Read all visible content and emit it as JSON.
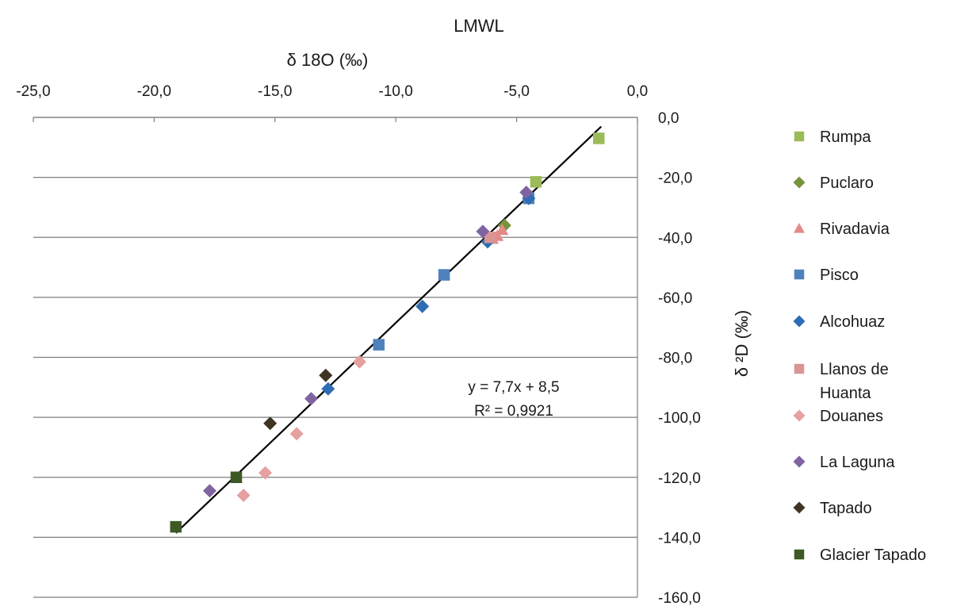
{
  "chart_data": {
    "type": "scatter",
    "title": "LMWL",
    "xlabel": "δ 18O (‰)",
    "ylabel": "δ ²D (‰)",
    "xlim": [
      -25,
      0
    ],
    "ylim": [
      -160,
      0
    ],
    "x_ticks": [
      "-25,0",
      "-20,0",
      "-15,0",
      "-10,0",
      "-5,0",
      "0,0"
    ],
    "y_ticks": [
      "0,0",
      "-20,0",
      "-40,0",
      "-60,0",
      "-80,0",
      "-100,0",
      "-120,0",
      "-140,0",
      "-160,0"
    ],
    "x_axis_position": "top",
    "y_axis_position": "right",
    "grid": "horizontal",
    "legend_position": "right",
    "trendline": {
      "equation": "y = 7,7x + 8,5",
      "r2": "R² = 0,9921",
      "slope": 7.7,
      "intercept": 8.5,
      "x_range": [
        -19.1,
        -1.5
      ]
    },
    "series": [
      {
        "name": "Rumpa",
        "marker": "square",
        "color": "#9bbb59",
        "points": [
          [
            -1.6,
            -7
          ],
          [
            -4.2,
            -21.5
          ]
        ]
      },
      {
        "name": "Puclaro",
        "marker": "diamond",
        "color": "#77933c",
        "points": [
          [
            -5.5,
            -36
          ]
        ]
      },
      {
        "name": "Rivadavia",
        "marker": "triangle",
        "color": "#e48a87",
        "points": [
          [
            -5.6,
            -37.5
          ],
          [
            -5.8,
            -39.5
          ],
          [
            -6.0,
            -40.5
          ]
        ]
      },
      {
        "name": "Pisco",
        "marker": "square",
        "color": "#4f81bd",
        "points": [
          [
            -4.5,
            -27
          ],
          [
            -8.0,
            -52.5
          ],
          [
            -10.7,
            -75.8
          ]
        ]
      },
      {
        "name": "Alcohuaz",
        "marker": "diamond",
        "color": "#2e6db4",
        "points": [
          [
            -4.5,
            -27
          ],
          [
            -6.2,
            -41.5
          ],
          [
            -8.9,
            -63
          ],
          [
            -12.8,
            -90.5
          ]
        ]
      },
      {
        "name": "Llanos de Huanta",
        "marker": "square",
        "color": "#d99594",
        "points": [
          [
            -6.1,
            -40
          ]
        ]
      },
      {
        "name": "Douanes",
        "marker": "diamond",
        "color": "#e6a0a0",
        "points": [
          [
            -11.5,
            -81.5
          ],
          [
            -14.1,
            -105.5
          ],
          [
            -15.4,
            -118.5
          ],
          [
            -16.3,
            -126
          ]
        ]
      },
      {
        "name": "La Laguna",
        "marker": "diamond",
        "color": "#8064a2",
        "points": [
          [
            -4.6,
            -25
          ],
          [
            -6.4,
            -38
          ],
          [
            -13.5,
            -93.8
          ],
          [
            -17.7,
            -124.5
          ]
        ]
      },
      {
        "name": "Tapado",
        "marker": "diamond",
        "color": "#3f3421",
        "points": [
          [
            -12.9,
            -86
          ],
          [
            -15.2,
            -102
          ]
        ]
      },
      {
        "name": "Glacier Tapado",
        "marker": "square",
        "color": "#3d5a24",
        "points": [
          [
            -16.6,
            -120
          ],
          [
            -19.1,
            -136.5
          ]
        ]
      }
    ]
  }
}
